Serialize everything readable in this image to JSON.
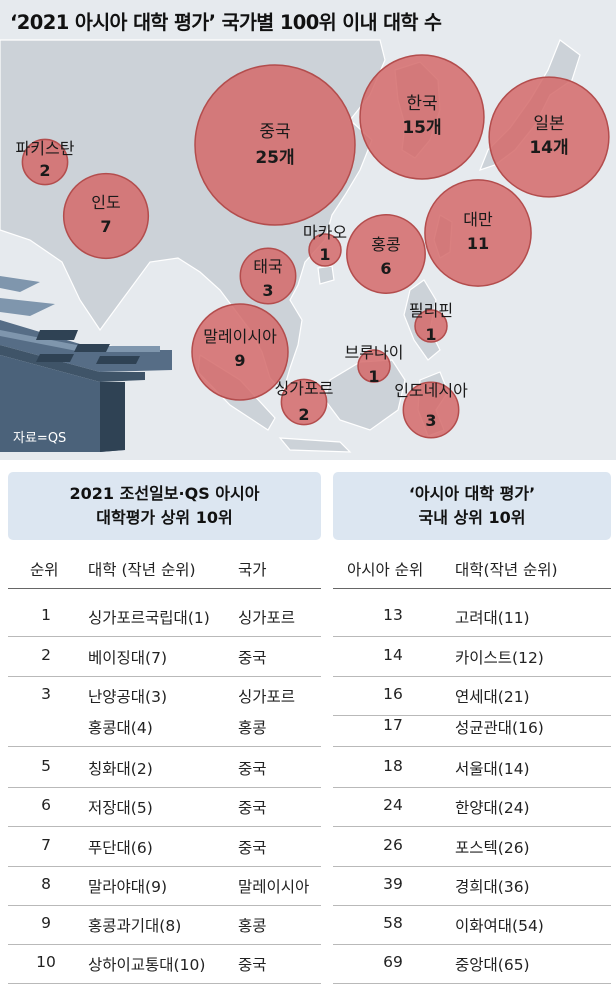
{
  "title": "‘2021 아시아 대학 평가’ 국가별 100위 이내 대학 수",
  "source": "자료=QS",
  "colors": {
    "bubble": "#d46a6a",
    "bubble_stroke": "#b34d4d",
    "land": "#ccd2d8",
    "sea": "#e6eaee",
    "box": "#dce6f1"
  },
  "chart_data": {
    "type": "bubble-map",
    "title": "‘2021 아시아 대학 평가’ 국가별 100위 이내 대학 수",
    "unit": "개",
    "points": [
      {
        "country": "중국",
        "value": 25,
        "label": "25개"
      },
      {
        "country": "한국",
        "value": 15,
        "label": "15개"
      },
      {
        "country": "일본",
        "value": 14,
        "label": "14개"
      },
      {
        "country": "대만",
        "value": 11,
        "label": "11"
      },
      {
        "country": "인도",
        "value": 7,
        "label": "7"
      },
      {
        "country": "홍콩",
        "value": 6,
        "label": "6"
      },
      {
        "country": "말레이시아",
        "value": 9,
        "label": "9"
      },
      {
        "country": "태국",
        "value": 3,
        "label": "3"
      },
      {
        "country": "파키스탄",
        "value": 2,
        "label": "2"
      },
      {
        "country": "싱가포르",
        "value": 2,
        "label": "2"
      },
      {
        "country": "인도네시아",
        "value": 3,
        "label": "3"
      },
      {
        "country": "마카오",
        "value": 1,
        "label": "1"
      },
      {
        "country": "필리핀",
        "value": 1,
        "label": "1"
      },
      {
        "country": "브루나이",
        "value": 1,
        "label": "1"
      }
    ]
  },
  "left_table": {
    "heading": [
      "2021 조선일보·QS 아시아",
      "대학평가 상위 10위"
    ],
    "headers": [
      "순위",
      "대학 (작년 순위)",
      "국가"
    ],
    "rows": [
      {
        "rank": "1",
        "univ": "싱가포르국립대(1)",
        "country": "싱가포르"
      },
      {
        "rank": "2",
        "univ": "베이징대(7)",
        "country": "중국"
      },
      {
        "rank": "3",
        "univ": "난양공대(3)",
        "country": "싱가포르"
      },
      {
        "rank": "",
        "univ": "홍콩대(4)",
        "country": "홍콩"
      },
      {
        "rank": "5",
        "univ": "칭화대(2)",
        "country": "중국"
      },
      {
        "rank": "6",
        "univ": "저장대(5)",
        "country": "중국"
      },
      {
        "rank": "7",
        "univ": "푸단대(6)",
        "country": "중국"
      },
      {
        "rank": "8",
        "univ": "말라야대(9)",
        "country": "말레이시아"
      },
      {
        "rank": "9",
        "univ": "홍콩과기대(8)",
        "country": "홍콩"
      },
      {
        "rank": "10",
        "univ": "상하이교통대(10)",
        "country": "중국"
      }
    ]
  },
  "right_table": {
    "heading": [
      "‘아시아 대학 평가’",
      "국내 상위 10위"
    ],
    "headers": [
      "아시아 순위",
      "대학(작년 순위)"
    ],
    "rows": [
      {
        "rank": "13",
        "univ": "고려대(11)"
      },
      {
        "rank": "14",
        "univ": "카이스트(12)"
      },
      {
        "rank": "16",
        "univ": "연세대(21)"
      },
      {
        "rank": "17",
        "univ": "성균관대(16)"
      },
      {
        "rank": "18",
        "univ": "서울대(14)"
      },
      {
        "rank": "24",
        "univ": "한양대(24)"
      },
      {
        "rank": "26",
        "univ": "포스텍(26)"
      },
      {
        "rank": "39",
        "univ": "경희대(36)"
      },
      {
        "rank": "58",
        "univ": "이화여대(54)"
      },
      {
        "rank": "69",
        "univ": "중앙대(65)"
      }
    ]
  }
}
